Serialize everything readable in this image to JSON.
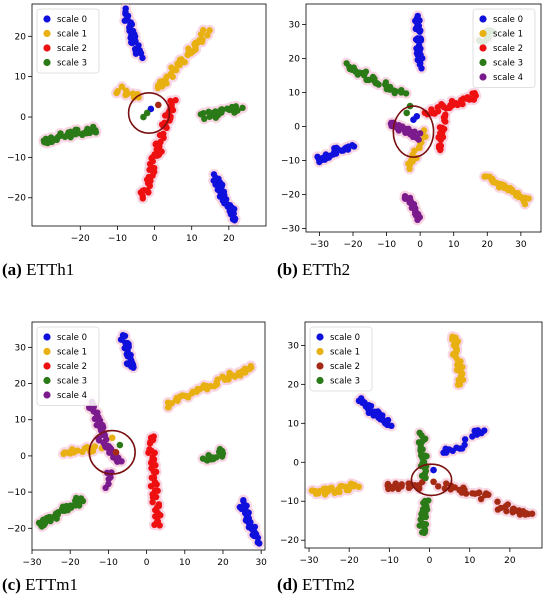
{
  "colors": {
    "scale0": "#1010dd",
    "scale1": "#e8b010",
    "scale2_red": "#ee1010",
    "scale2_brown": "#a52a14",
    "scale3": "#2a7a18",
    "scale4": "#7a1a8c",
    "halo": "#f4b4cc",
    "circle": "#7a1010"
  },
  "chart_data": [
    {
      "type": "scatter",
      "caption_label": "(a)",
      "caption_text": "ETTh1",
      "xlim": [
        -33,
        30
      ],
      "ylim": [
        -27,
        28
      ],
      "xticks": [
        -20,
        -10,
        0,
        10,
        20
      ],
      "yticks": [
        -20,
        -10,
        0,
        10,
        20
      ],
      "legend": "top-left",
      "circle": {
        "cx": -1.5,
        "cy": 1.0,
        "rx": 5.5,
        "ry": 5.0
      },
      "series": [
        {
          "name": "scale 0",
          "color": "#1010dd",
          "clusters": [
            {
              "x0": -8,
              "y0": 26,
              "x1": -4,
              "y1": 15,
              "n": 35
            },
            {
              "x0": 16,
              "y0": -15,
              "x1": 22,
              "y1": -25,
              "n": 40
            }
          ]
        },
        {
          "name": "scale 1",
          "color": "#e8b010",
          "clusters": [
            {
              "x0": 14,
              "y0": 21,
              "x1": 1,
              "y1": 7,
              "n": 45
            },
            {
              "x0": -10,
              "y0": 7,
              "x1": -4,
              "y1": 5,
              "n": 12
            }
          ]
        },
        {
          "name": "scale 2",
          "color": "#ee1010",
          "clusters": [
            {
              "x0": 5,
              "y0": 4,
              "x1": -3,
              "y1": -20,
              "n": 55
            }
          ]
        },
        {
          "name": "scale 3",
          "color": "#2a7a18",
          "clusters": [
            {
              "x0": -30,
              "y0": -6,
              "x1": -16,
              "y1": -3,
              "n": 40
            },
            {
              "x0": 13,
              "y0": 0,
              "x1": 23,
              "y1": 2,
              "n": 25
            }
          ]
        }
      ],
      "core": [
        {
          "x": -1,
          "y": 2,
          "c": "#1010dd"
        },
        {
          "x": -3,
          "y": 0,
          "c": "#2a7a18"
        },
        {
          "x": -2,
          "y": 1,
          "c": "#2a7a18"
        },
        {
          "x": 1,
          "y": 3,
          "c": "#a52a14"
        }
      ]
    },
    {
      "type": "scatter",
      "caption_label": "(b)",
      "caption_text": "ETTh2",
      "xlim": [
        -34,
        36
      ],
      "ylim": [
        -31,
        36
      ],
      "xticks": [
        -30,
        -20,
        -10,
        0,
        10,
        20,
        30
      ],
      "yticks": [
        -30,
        -20,
        -10,
        0,
        10,
        20,
        30
      ],
      "legend": "top-right",
      "circle": {
        "cx": -2.0,
        "cy": -1.5,
        "rx": 6.0,
        "ry": 7.5
      },
      "series": [
        {
          "name": "scale 0",
          "color": "#1010dd",
          "clusters": [
            {
              "x0": -1,
              "y0": 32,
              "x1": 0,
              "y1": 18,
              "n": 35
            },
            {
              "x0": -31,
              "y0": -10,
              "x1": -20,
              "y1": -5,
              "n": 30
            }
          ]
        },
        {
          "name": "scale 1",
          "color": "#e8b010",
          "clusters": [
            {
              "x0": 20,
              "y0": -15,
              "x1": 32,
              "y1": -22,
              "n": 35
            },
            {
              "x0": 2,
              "y0": -2,
              "x1": -4,
              "y1": -12,
              "n": 15
            }
          ]
        },
        {
          "name": "scale 2",
          "color": "#ee1010",
          "clusters": [
            {
              "x0": 2,
              "y0": 4,
              "x1": 17,
              "y1": 9,
              "n": 30
            },
            {
              "x0": 7,
              "y0": 3,
              "x1": 6,
              "y1": -7,
              "n": 20
            }
          ]
        },
        {
          "name": "scale 3",
          "color": "#2a7a18",
          "clusters": [
            {
              "x0": -22,
              "y0": 18,
              "x1": -5,
              "y1": 9,
              "n": 35
            },
            {
              "x0": 18,
              "y0": 25,
              "x1": 21,
              "y1": 28,
              "n": 12
            }
          ]
        },
        {
          "name": "scale 4",
          "color": "#7a1a8c",
          "clusters": [
            {
              "x0": -9,
              "y0": 1,
              "x1": 0,
              "y1": -3,
              "n": 25
            },
            {
              "x0": -4,
              "y0": -20,
              "x1": 0,
              "y1": -27,
              "n": 25
            }
          ]
        }
      ],
      "core": [
        {
          "x": -2,
          "y": 2,
          "c": "#1010dd"
        },
        {
          "x": -1,
          "y": 3,
          "c": "#1010dd"
        },
        {
          "x": -4,
          "y": 4,
          "c": "#2a7a18"
        },
        {
          "x": -3,
          "y": 6,
          "c": "#2a7a18"
        }
      ]
    },
    {
      "type": "scatter",
      "caption_label": "(c)",
      "caption_text": "ETTm1",
      "xlim": [
        -30,
        31
      ],
      "ylim": [
        -26,
        37
      ],
      "xticks": [
        -30,
        -20,
        -10,
        0,
        10,
        20,
        30
      ],
      "yticks": [
        -20,
        -10,
        0,
        10,
        20,
        30
      ],
      "legend": "top-left",
      "circle": {
        "cx": -9.0,
        "cy": 1.0,
        "rx": 6.0,
        "ry": 6.0
      },
      "series": [
        {
          "name": "scale 0",
          "color": "#1010dd",
          "clusters": [
            {
              "x0": -6,
              "y0": 33,
              "x1": -4,
              "y1": 24,
              "n": 30
            },
            {
              "x0": 25,
              "y0": -13,
              "x1": 29,
              "y1": -24,
              "n": 35
            }
          ]
        },
        {
          "name": "scale 1",
          "color": "#e8b010",
          "clusters": [
            {
              "x0": 5,
              "y0": 14,
              "x1": 28,
              "y1": 25,
              "n": 45
            },
            {
              "x0": -22,
              "y0": 1,
              "x1": -12,
              "y1": 2,
              "n": 15
            }
          ]
        },
        {
          "name": "scale 2",
          "color": "#ee1010",
          "clusters": [
            {
              "x0": 1,
              "y0": 5,
              "x1": 3,
              "y1": -19,
              "n": 45
            }
          ]
        },
        {
          "name": "scale 3",
          "color": "#2a7a18",
          "clusters": [
            {
              "x0": -28,
              "y0": -19,
              "x1": -17,
              "y1": -12,
              "n": 40
            },
            {
              "x0": 15,
              "y0": -1,
              "x1": 20,
              "y1": 1,
              "n": 15
            }
          ]
        },
        {
          "name": "scale 4",
          "color": "#7a1a8c",
          "clusters": [
            {
              "x0": -15,
              "y0": 15,
              "x1": -11,
              "y1": 6,
              "n": 30
            },
            {
              "x0": -12,
              "y0": 5,
              "x1": -7,
              "y1": -2,
              "n": 25
            },
            {
              "x0": -10,
              "y0": -4,
              "x1": -10,
              "y1": -8,
              "n": 6
            }
          ]
        }
      ],
      "core": [
        {
          "x": -9,
          "y": 5,
          "c": "#e8b010"
        },
        {
          "x": -7,
          "y": 3,
          "c": "#2a7a18"
        },
        {
          "x": -8,
          "y": 1,
          "c": "#a52a14"
        }
      ]
    },
    {
      "type": "scatter",
      "caption_label": "(d)",
      "caption_text": "ETTm2",
      "xlim": [
        -31,
        28
      ],
      "ylim": [
        -22,
        36
      ],
      "xticks": [
        -30,
        -20,
        -10,
        0,
        10,
        20
      ],
      "yticks": [
        -20,
        -10,
        0,
        10,
        20,
        30
      ],
      "legend": "top-left",
      "circle": {
        "cx": 0.5,
        "cy": -4.5,
        "rx": 5.0,
        "ry": 4.0
      },
      "series": [
        {
          "name": "scale 0",
          "color": "#1010dd",
          "clusters": [
            {
              "x0": -18,
              "y0": 16,
              "x1": -10,
              "y1": 10,
              "n": 35
            },
            {
              "x0": 11,
              "y0": 7,
              "x1": 13,
              "y1": 8,
              "n": 10
            },
            {
              "x0": 3,
              "y0": 2,
              "x1": 9,
              "y1": 5,
              "n": 10
            }
          ]
        },
        {
          "name": "scale 1",
          "color": "#e8b010",
          "clusters": [
            {
              "x0": 6,
              "y0": 32,
              "x1": 8,
              "y1": 20,
              "n": 35
            },
            {
              "x0": -29,
              "y0": -8,
              "x1": -18,
              "y1": -6,
              "n": 30
            }
          ]
        },
        {
          "name": "scale 2",
          "color": "#a52a14",
          "clusters": [
            {
              "x0": -11,
              "y0": -6,
              "x1": -2,
              "y1": -6,
              "n": 20
            },
            {
              "x0": 3,
              "y0": -6,
              "x1": 15,
              "y1": -9,
              "n": 20
            },
            {
              "x0": 17,
              "y0": -11,
              "x1": 25,
              "y1": -14,
              "n": 20
            }
          ]
        },
        {
          "name": "scale 3",
          "color": "#2a7a18",
          "clusters": [
            {
              "x0": -2,
              "y0": 7,
              "x1": -1,
              "y1": -3,
              "n": 25
            },
            {
              "x0": -1,
              "y0": -10,
              "x1": -2,
              "y1": -18,
              "n": 25
            }
          ]
        }
      ],
      "core": [
        {
          "x": 1,
          "y": -2,
          "c": "#1010dd"
        },
        {
          "x": -1,
          "y": -4,
          "c": "#2a7a18"
        },
        {
          "x": 1,
          "y": -5,
          "c": "#a52a14"
        }
      ]
    }
  ]
}
